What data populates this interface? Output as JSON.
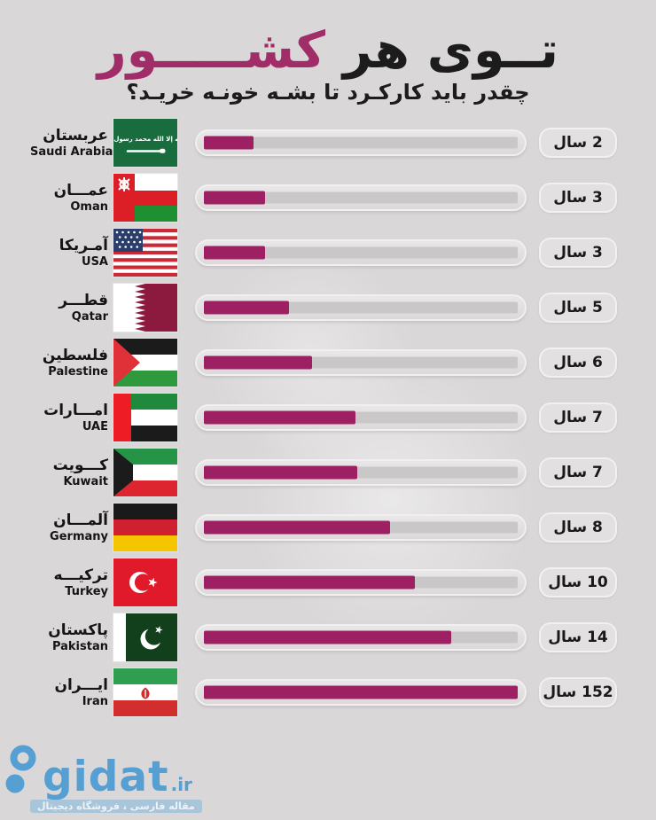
{
  "header": {
    "title_black": "تــوی هر",
    "title_accent": "کشـــــور",
    "subtitle": "چقدر باید کارکـرد تا بشـه خونـه خریـد؟"
  },
  "chart_data": {
    "type": "bar",
    "orientation": "horizontal",
    "title": "توی هر کشور چقدر باید کارکرد تا بشه خونه خرید؟",
    "unit_label": "سال",
    "categories": [
      "Saudi Arabia",
      "Oman",
      "USA",
      "Qatar",
      "Palestine",
      "UAE",
      "Kuwait",
      "Germany",
      "Turkey",
      "Pakistan",
      "Iran"
    ],
    "categories_fa": [
      "عربستان",
      "عمـــان",
      "آمـریکا",
      "قطـــر",
      "فلسطین",
      "امـــارات",
      "کـــویت",
      "آلمـــان",
      "ترکیـــه",
      "پاکستان",
      "ایـــران"
    ],
    "values": [
      2,
      3,
      3,
      5,
      6,
      7,
      7,
      8,
      10,
      14,
      152
    ],
    "bar_fill_percent": [
      15.7,
      19.6,
      19.6,
      27.2,
      34.6,
      48.4,
      48.8,
      59.4,
      67.3,
      78.8,
      100
    ],
    "bar_color": "#9c2062",
    "legend_position": "none",
    "grid": false
  },
  "rows": [
    {
      "name_fa": "عربستان",
      "name_en": "Saudi Arabia",
      "flag": "saudi-arabia",
      "value": 2,
      "value_label": "2 سال",
      "percent": 15.7
    },
    {
      "name_fa": "عمـــان",
      "name_en": "Oman",
      "flag": "oman",
      "value": 3,
      "value_label": "3 سال",
      "percent": 19.6
    },
    {
      "name_fa": "آمـریکا",
      "name_en": "USA",
      "flag": "usa",
      "value": 3,
      "value_label": "3 سال",
      "percent": 19.6
    },
    {
      "name_fa": "قطـــر",
      "name_en": "Qatar",
      "flag": "qatar",
      "value": 5,
      "value_label": "5 سال",
      "percent": 27.2
    },
    {
      "name_fa": "فلسطین",
      "name_en": "Palestine",
      "flag": "palestine",
      "value": 6,
      "value_label": "6 سال",
      "percent": 34.6
    },
    {
      "name_fa": "امـــارات",
      "name_en": "UAE",
      "flag": "uae",
      "value": 7,
      "value_label": "7 سال",
      "percent": 48.4
    },
    {
      "name_fa": "کـــویت",
      "name_en": "Kuwait",
      "flag": "kuwait",
      "value": 7,
      "value_label": "7 سال",
      "percent": 48.8
    },
    {
      "name_fa": "آلمـــان",
      "name_en": "Germany",
      "flag": "germany",
      "value": 8,
      "value_label": "8 سال",
      "percent": 59.4
    },
    {
      "name_fa": "ترکیـــه",
      "name_en": "Turkey",
      "flag": "turkey",
      "value": 10,
      "value_label": "10 سال",
      "percent": 67.3
    },
    {
      "name_fa": "پاکستان",
      "name_en": "Pakistan",
      "flag": "pakistan",
      "value": 14,
      "value_label": "14 سال",
      "percent": 78.8
    },
    {
      "name_fa": "ایـــران",
      "name_en": "Iran",
      "flag": "iran",
      "value": 152,
      "value_label": "152 سال",
      "percent": 100
    }
  ],
  "footer": {
    "logo_text": "gidat",
    "logo_suffix": ".ir",
    "tagline": "مقاله فارسی ، فروشگاه دیجیتال"
  },
  "colors": {
    "background": "#d9d7d8",
    "accent": "#a12d68",
    "bar_fill": "#9c2062",
    "bar_track": "#c9c7c8",
    "text": "#1d1c1c",
    "logo_blue": "#4a9bd3"
  }
}
